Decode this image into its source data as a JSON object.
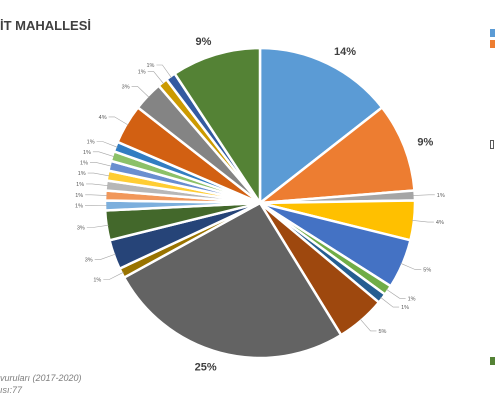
{
  "chart_data": {
    "type": "pie",
    "title": "İT MAHALLESİ",
    "slices": [
      {
        "label": "14%",
        "value": 14,
        "color": "#5b9bd5"
      },
      {
        "label": "9%",
        "value": 9,
        "color": "#ed7d31"
      },
      {
        "label": "1%",
        "value": 1,
        "color": "#a5a5a5"
      },
      {
        "label": "4%",
        "value": 4,
        "color": "#ffc000"
      },
      {
        "label": "5%",
        "value": 5,
        "color": "#4472c4"
      },
      {
        "label": "1%",
        "value": 1,
        "color": "#70ad47"
      },
      {
        "label": "1%",
        "value": 1,
        "color": "#255e91"
      },
      {
        "label": "5%",
        "value": 5,
        "color": "#9e480e"
      },
      {
        "label": "25%",
        "value": 25,
        "color": "#636363"
      },
      {
        "label": "1%",
        "value": 1,
        "color": "#997300"
      },
      {
        "label": "3%",
        "value": 3,
        "color": "#264478"
      },
      {
        "label": "3%",
        "value": 3,
        "color": "#43682b"
      },
      {
        "label": "1%",
        "value": 1,
        "color": "#7cafdd"
      },
      {
        "label": "1%",
        "value": 1,
        "color": "#f1975a"
      },
      {
        "label": "1%",
        "value": 1,
        "color": "#b7b7b7"
      },
      {
        "label": "1%",
        "value": 1,
        "color": "#ffcd33"
      },
      {
        "label": "1%",
        "value": 1,
        "color": "#698ed0"
      },
      {
        "label": "1%",
        "value": 1,
        "color": "#8cc168"
      },
      {
        "label": "1%",
        "value": 1,
        "color": "#327dc2"
      },
      {
        "label": "4%",
        "value": 4,
        "color": "#d26012"
      },
      {
        "label": "3%",
        "value": 3,
        "color": "#848484"
      },
      {
        "label": "1%",
        "value": 1,
        "color": "#cc9a00"
      },
      {
        "label": "1%",
        "value": 1,
        "color": "#335aa1"
      },
      {
        "label": "9%",
        "value": 9,
        "color": "#548235"
      }
    ]
  },
  "footnote": {
    "line1": "vuruları (2017-2020)",
    "line2": "ısı:77"
  },
  "legend_colors": [
    "#5b9bd5",
    "#ed7d31",
    "#595959",
    "#548235"
  ]
}
